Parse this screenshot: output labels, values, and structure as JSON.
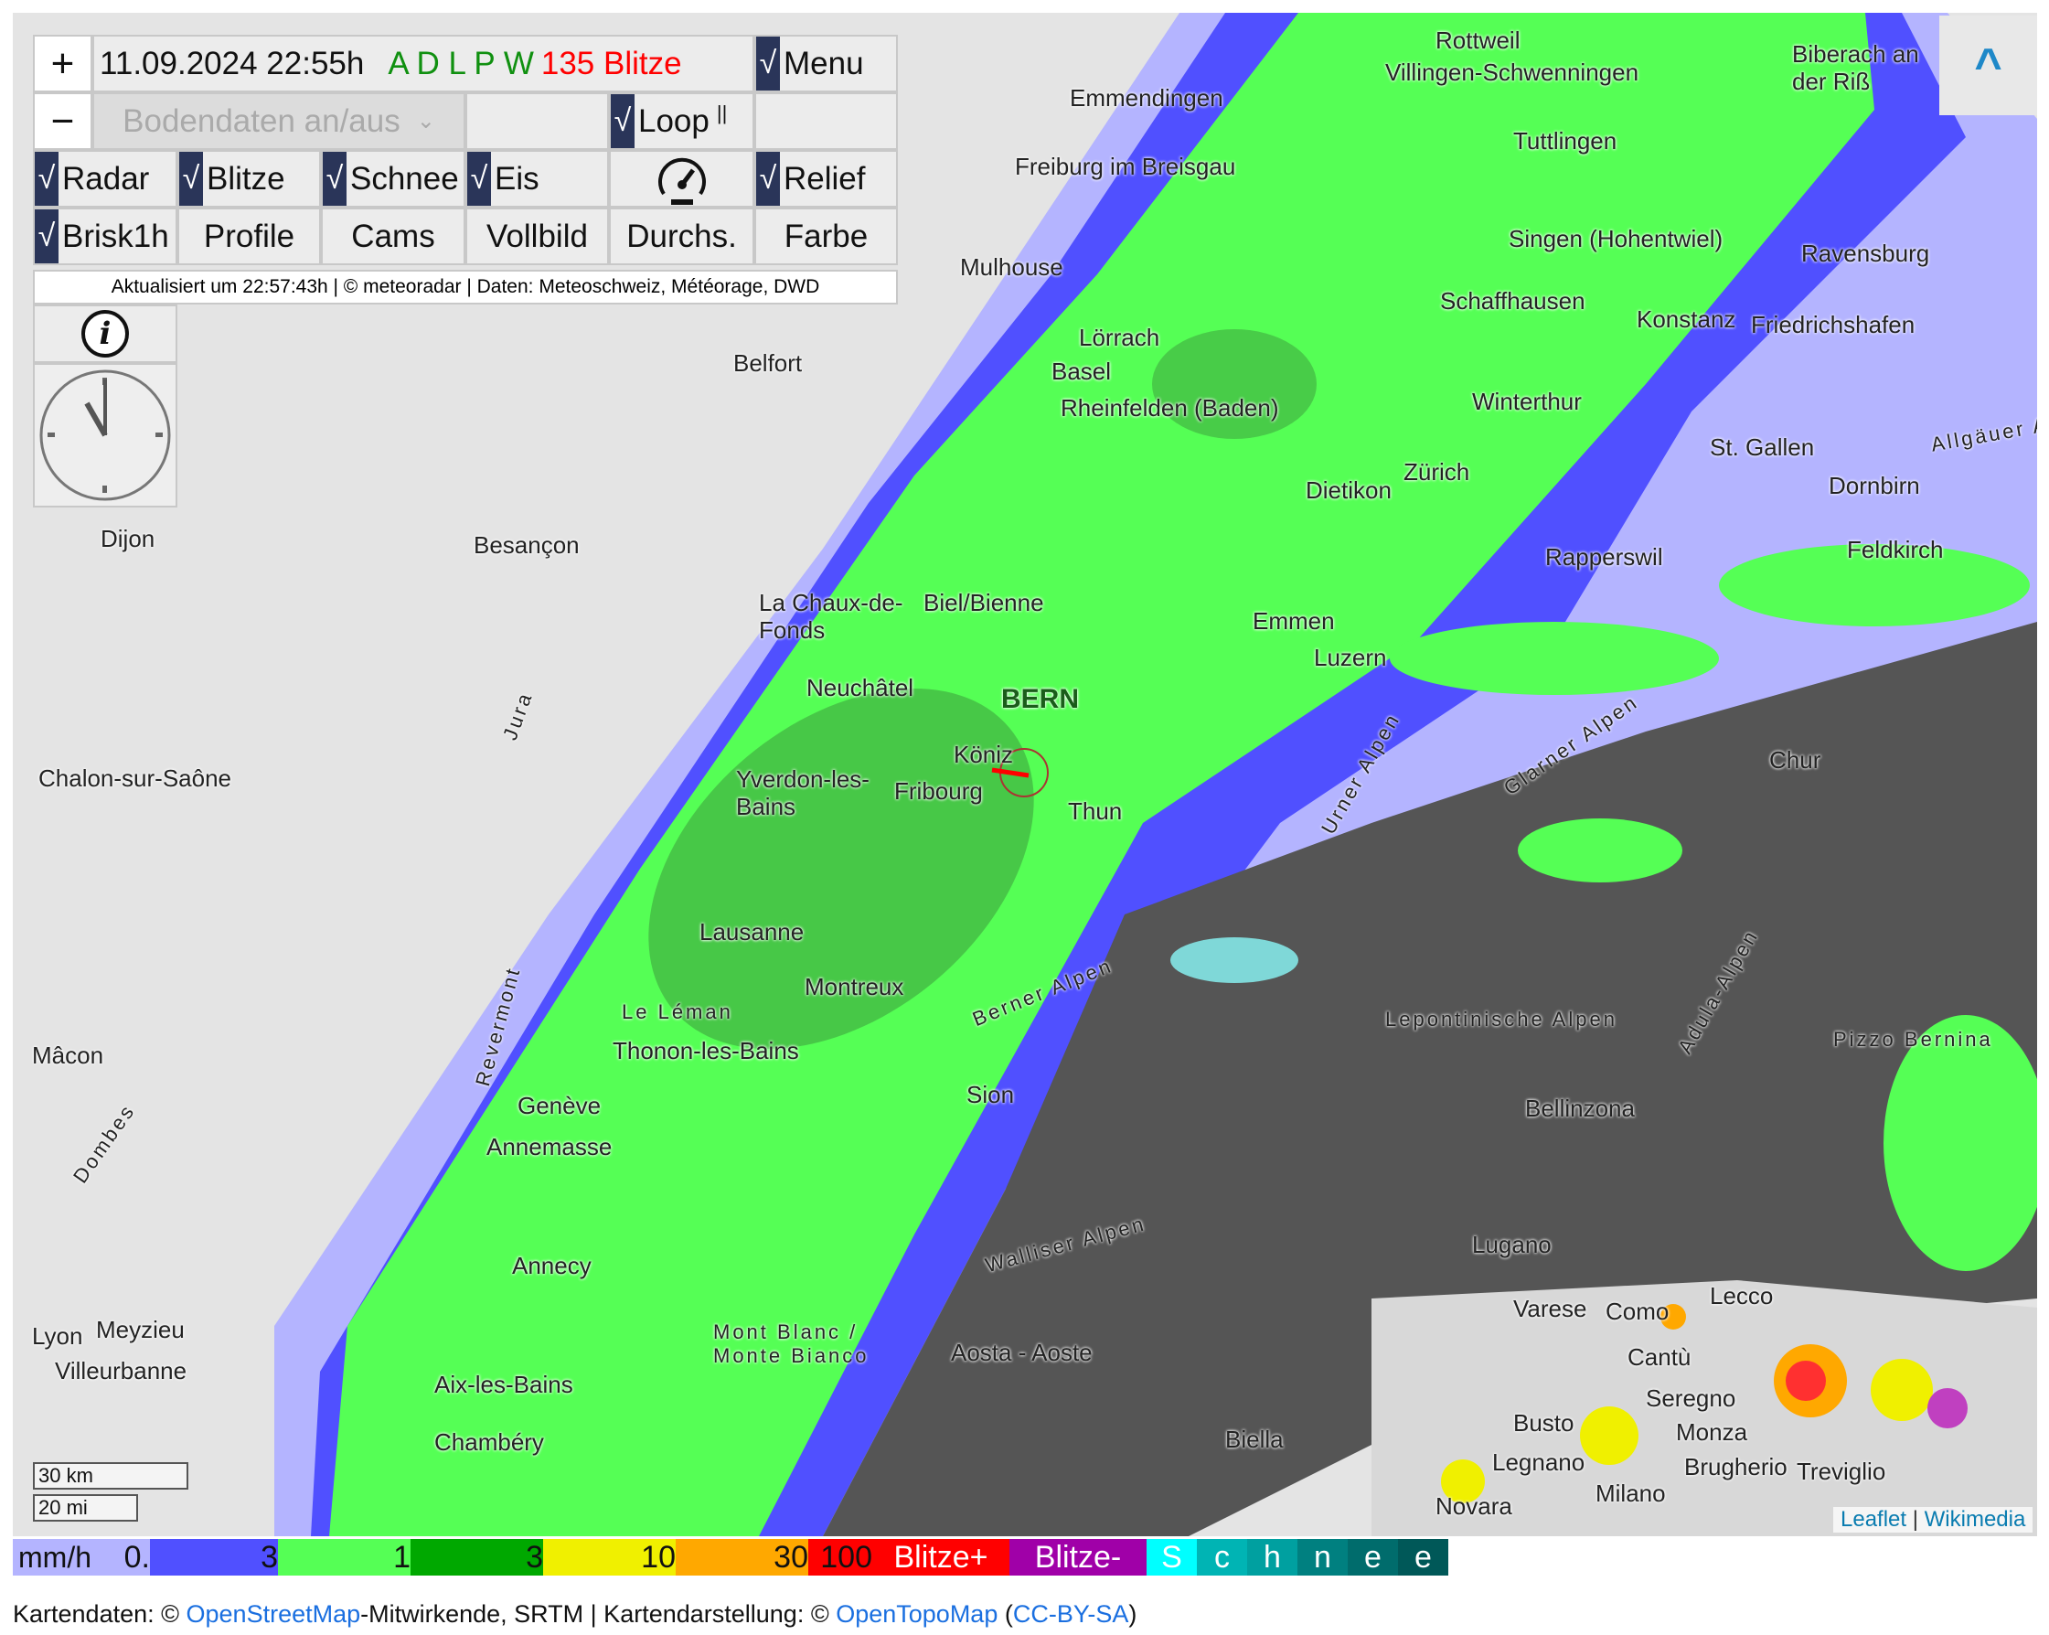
{
  "toolbar": {
    "zoom_in": "+",
    "zoom_out": "−",
    "datetime": "11.09.2024 22:55h",
    "stations": "A D L P W",
    "lightning_count": "135 Blitze",
    "menu": "Menu",
    "ground_data_select": "Bodendaten an/aus",
    "loop": "Loop",
    "loop_pause": "||",
    "check": "√",
    "toggles": [
      "Radar",
      "Blitze",
      "Schnee",
      "Eis",
      "Relief",
      "Brisk1h"
    ],
    "buttons": [
      "Profile",
      "Cams",
      "Vollbild",
      "Durchs.",
      "Farbe"
    ],
    "updated": "Aktualisiert um 22:57:43h | © meteoradar | Daten: Meteoschweiz, Météorage, DWD",
    "info": "i",
    "collapse": "^"
  },
  "map": {
    "cities": [
      "Emmendingen",
      "Freiburg im Breisgau",
      "Mulhouse",
      "Belfort",
      "Lörrach",
      "Basel",
      "Rheinfelden (Baden)",
      "Besançon",
      "Dijon",
      "Rottweil",
      "Villingen-Schwenningen",
      "Tuttlingen",
      "Singen (Hohentwiel)",
      "Schaffhausen",
      "Konstanz",
      "Friedrichshafen",
      "Ravensburg",
      "Biberach an der Riß",
      "Winterthur",
      "Zürich",
      "Dietikon",
      "St. Gallen",
      "Dornbirn",
      "Feldkirch",
      "Rapperswil",
      "Biel/Bienne",
      "La Chaux-de-Fonds",
      "Neuchâtel",
      "BERN",
      "Köniz",
      "Fribourg",
      "Thun",
      "Yverdon-les-Bains",
      "Lausanne",
      "Montreux",
      "Luzern",
      "Emmen",
      "Chur",
      "Chalon-sur-Saône",
      "Mâcon",
      "Genève",
      "Annemasse",
      "Thonon-les-Bains",
      "Annecy",
      "Chambéry",
      "Aix-les-Bains",
      "Lyon",
      "Villeurbanne",
      "Meyzieu",
      "Sion",
      "Aosta - Aoste",
      "Biella",
      "Bellinzona",
      "Lugano",
      "Varese",
      "Como",
      "Lecco",
      "Cantù",
      "Seregno",
      "Monza",
      "Milano",
      "Novara",
      "Legnano",
      "Busto",
      "Treviglio",
      "Brugherio"
    ],
    "regions": [
      "Walliser Alpen",
      "Berner Alpen",
      "Lepontinische Alpen",
      "Glarner Alpen",
      "Urner Alpen",
      "Adula-Alpen",
      "Allgäuer Alpen",
      "Pizzo Bernina",
      "Mont Blanc / Monte Bianco",
      "Le Léman",
      "Revermont",
      "Dombes",
      "Jura"
    ],
    "scale_km": "30 km",
    "scale_mi": "20 mi",
    "attribution_leaflet": "Leaflet",
    "attribution_sep": "|",
    "attribution_wikimedia": "Wikimedia"
  },
  "legend": {
    "unit": "mm/h",
    "items": [
      {
        "label": "0.",
        "color": "#b4b4ff"
      },
      {
        "label": "3",
        "color": "#5050ff"
      },
      {
        "label": "1",
        "color": "#55ff55"
      },
      {
        "label": "3",
        "color": "#00a800"
      },
      {
        "label": "10",
        "color": "#f0f000"
      },
      {
        "label": "30",
        "color": "#ffa800"
      },
      {
        "label": "100",
        "color": "#ff0000"
      },
      {
        "label": "Blitze+",
        "color": "#ff0000"
      },
      {
        "label": "Blitze-",
        "color": "#a000a8"
      },
      {
        "label": "S",
        "color": "#00ffff"
      },
      {
        "label": "c",
        "color": "#00b4b4"
      },
      {
        "label": "h",
        "color": "#00a0a0"
      },
      {
        "label": "n",
        "color": "#008080"
      },
      {
        "label": "e",
        "color": "#006c6c"
      },
      {
        "label": "e",
        "color": "#005858"
      }
    ]
  },
  "footer": {
    "prefix": "Kartendaten: © ",
    "osm": "OpenStreetMap",
    "middle": "-Mitwirkende, SRTM | Kartendarstellung: © ",
    "otm": "OpenTopoMap",
    "open": " (",
    "license": "CC-BY-SA",
    "close": ")"
  },
  "colors": {
    "accent": "#2a3559",
    "stations": "#109010",
    "lightning": "#ff0000",
    "link": "#1a6fe0"
  }
}
